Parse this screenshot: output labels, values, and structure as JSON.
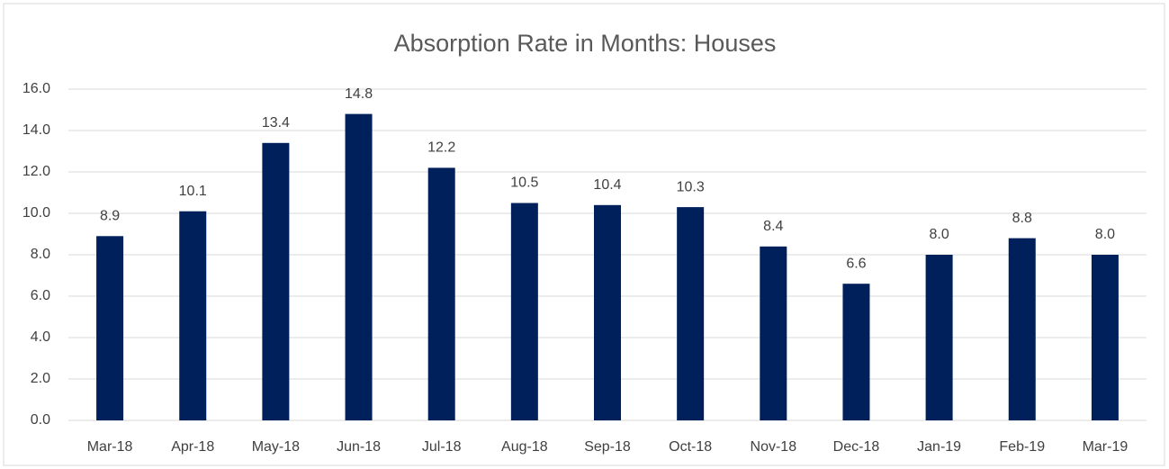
{
  "chart_data": {
    "type": "bar",
    "title": "Absorption Rate in Months: Houses",
    "categories": [
      "Mar-18",
      "Apr-18",
      "May-18",
      "Jun-18",
      "Jul-18",
      "Aug-18",
      "Sep-18",
      "Oct-18",
      "Nov-18",
      "Dec-18",
      "Jan-19",
      "Feb-19",
      "Mar-19"
    ],
    "values": [
      8.9,
      10.1,
      13.4,
      14.8,
      12.2,
      10.5,
      10.4,
      10.3,
      8.4,
      6.6,
      8.0,
      8.8,
      8.0
    ],
    "value_labels": [
      "8.9",
      "10.1",
      "13.4",
      "14.8",
      "12.2",
      "10.5",
      "10.4",
      "10.3",
      "8.4",
      "6.6",
      "8.0",
      "8.8",
      "8.0"
    ],
    "color": "#00205b",
    "ylim": [
      0,
      16
    ],
    "yticks": [
      {
        "value": 0,
        "label": "0.0"
      },
      {
        "value": 2,
        "label": "2.0"
      },
      {
        "value": 4,
        "label": "4.0"
      },
      {
        "value": 6,
        "label": "6.0"
      },
      {
        "value": 8,
        "label": "8.0"
      },
      {
        "value": 10,
        "label": "10.0"
      },
      {
        "value": 12,
        "label": "12.0"
      },
      {
        "value": 14,
        "label": "14.0"
      },
      {
        "value": 16,
        "label": "16.0"
      }
    ],
    "grid": true
  }
}
